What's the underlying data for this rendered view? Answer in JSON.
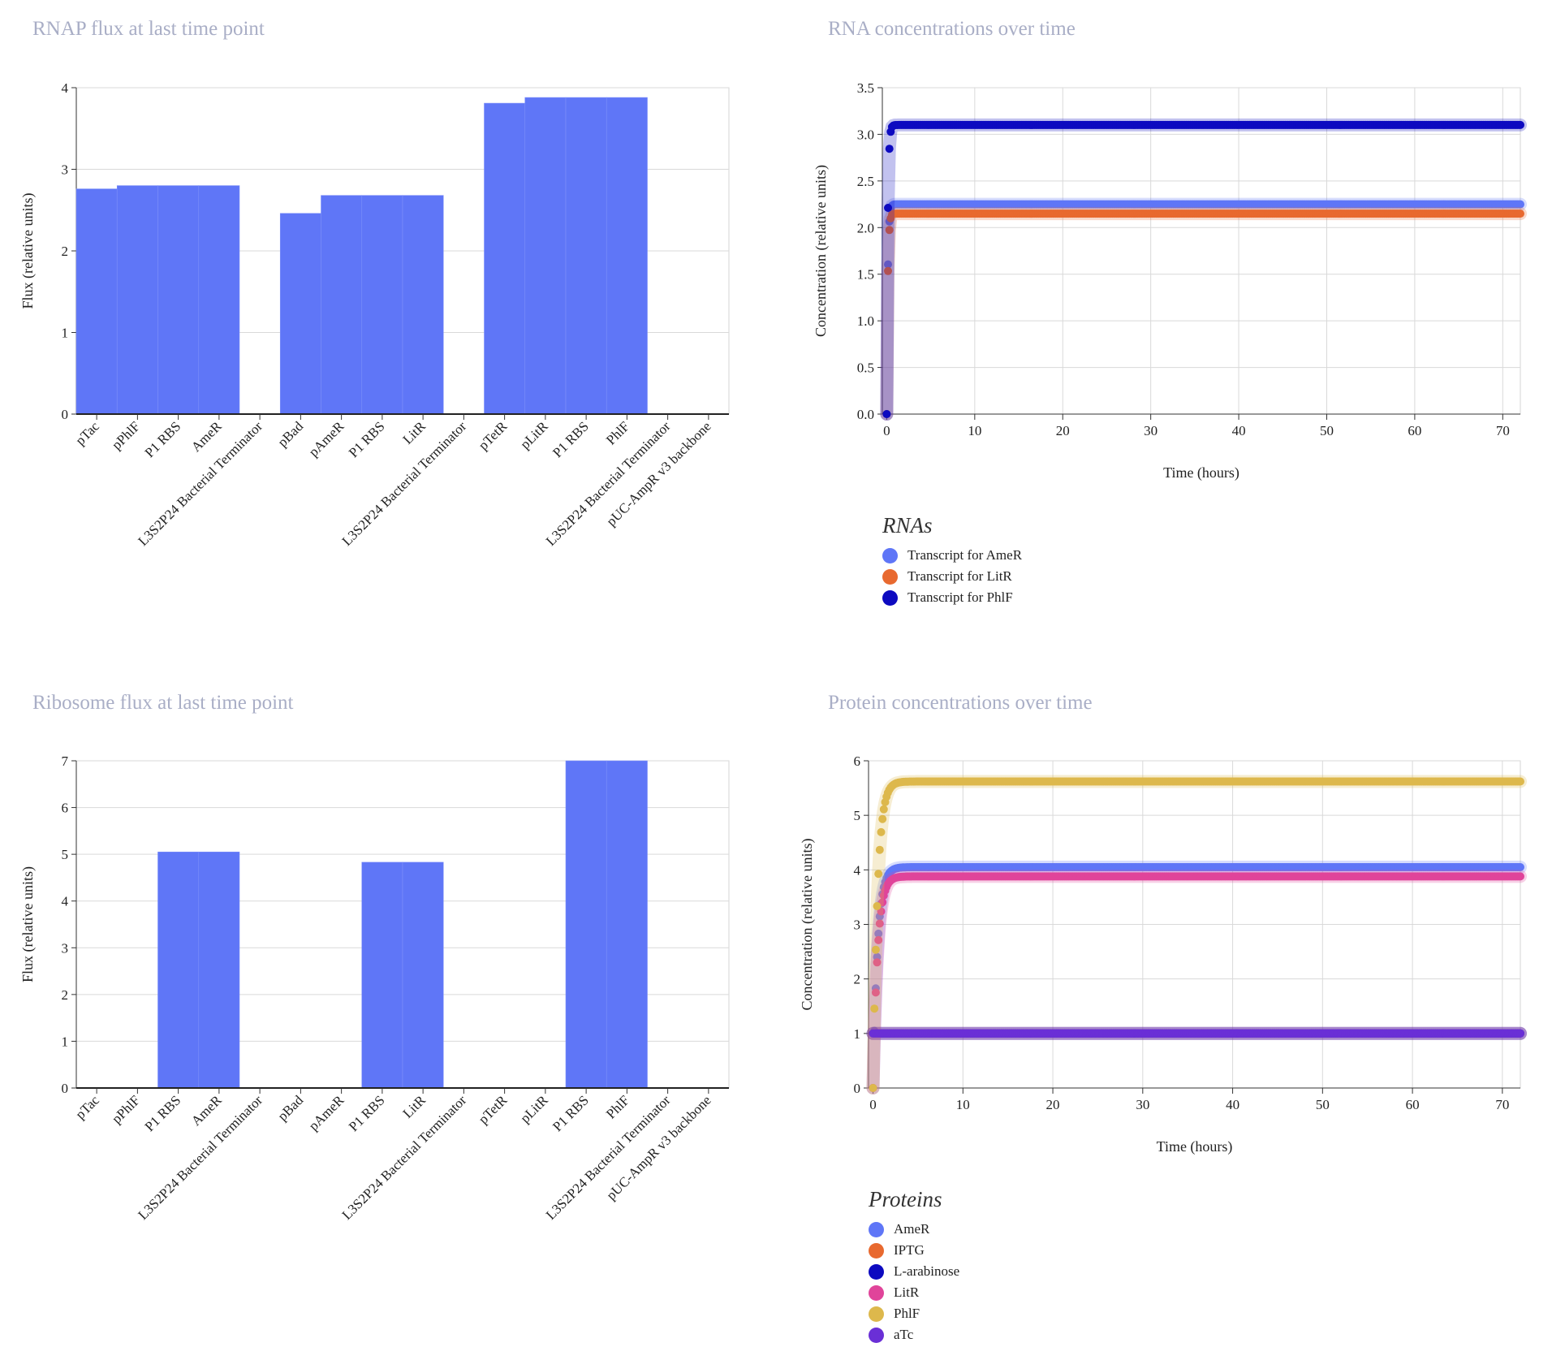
{
  "chart_data": [
    {
      "id": "rnap",
      "type": "bar",
      "title": "RNAP flux at last time point",
      "xlabel": "",
      "ylabel": "Flux (relative units)",
      "ylim": [
        0,
        4
      ],
      "yticks": [
        0,
        1,
        2,
        3,
        4
      ],
      "categories": [
        "pTac",
        "pPhlF",
        "P1 RBS",
        "AmeR",
        "L3S2P24 Bacterial Terminator",
        "pBad",
        "pAmeR",
        "P1 RBS",
        "LitR",
        "L3S2P24 Bacterial Terminator",
        "pTetR",
        "pLitR",
        "P1 RBS",
        "PhlF",
        "L3S2P24 Bacterial Terminator",
        "pUC-AmpR v3 backbone"
      ],
      "values": [
        2.76,
        2.8,
        2.8,
        2.8,
        0,
        2.46,
        2.68,
        2.68,
        2.68,
        0,
        3.81,
        3.88,
        3.88,
        3.88,
        0,
        0
      ],
      "color": "#5f76f7",
      "grid": true
    },
    {
      "id": "ribo",
      "type": "bar",
      "title": "Ribosome flux at last time point",
      "xlabel": "",
      "ylabel": "Flux (relative units)",
      "ylim": [
        0,
        7
      ],
      "yticks": [
        0,
        1,
        2,
        3,
        4,
        5,
        6,
        7
      ],
      "categories": [
        "pTac",
        "pPhlF",
        "P1 RBS",
        "AmeR",
        "L3S2P24 Bacterial Terminator",
        "pBad",
        "pAmeR",
        "P1 RBS",
        "LitR",
        "L3S2P24 Bacterial Terminator",
        "pTetR",
        "pLitR",
        "P1 RBS",
        "PhlF",
        "L3S2P24 Bacterial Terminator",
        "pUC-AmpR v3 backbone"
      ],
      "values": [
        0,
        0,
        5.05,
        5.05,
        0,
        0,
        0,
        4.83,
        4.83,
        0,
        0,
        0,
        7.0,
        7.0,
        0,
        0
      ],
      "color": "#5f76f7",
      "grid": true
    },
    {
      "id": "rna",
      "type": "scatter",
      "title": "RNA concentrations over time",
      "xlabel": "Time (hours)",
      "ylabel": "Concentration (relative units)",
      "xlim": [
        -0.5,
        72
      ],
      "ylim": [
        0,
        3.5
      ],
      "xticks": [
        0,
        10,
        20,
        30,
        40,
        50,
        60,
        70
      ],
      "yticks": [
        0.0,
        0.5,
        1.0,
        1.5,
        2.0,
        2.5,
        3.0,
        3.5
      ],
      "yformat": 1,
      "legend_title": "RNAs",
      "legend_position": "bottom-left",
      "grid": true,
      "series": [
        {
          "name": "Transcript for AmeR",
          "color": "#5f76f7",
          "steady": 2.25,
          "tau": 0.12
        },
        {
          "name": "Transcript for LitR",
          "color": "#e8692f",
          "steady": 2.15,
          "tau": 0.12
        },
        {
          "name": "Transcript for PhlF",
          "color": "#0d0ac0",
          "steady": 3.1,
          "tau": 0.12
        }
      ]
    },
    {
      "id": "protein",
      "type": "scatter",
      "title": "Protein concentrations over time",
      "xlabel": "Time (hours)",
      "ylabel": "Concentration (relative units)",
      "xlim": [
        -0.5,
        72
      ],
      "ylim": [
        0,
        6
      ],
      "xticks": [
        0,
        10,
        20,
        30,
        40,
        50,
        60,
        70
      ],
      "yticks": [
        0,
        1,
        2,
        3,
        4,
        5,
        6
      ],
      "yformat": 0,
      "legend_title": "Proteins",
      "legend_position": "bottom-left",
      "grid": true,
      "series": [
        {
          "name": "AmeR",
          "color": "#5f76f7",
          "steady": 4.05,
          "tau": 0.5
        },
        {
          "name": "IPTG",
          "color": "#e8692f",
          "steady": 1.0,
          "tau": 0
        },
        {
          "name": "L-arabinose",
          "color": "#0d0ac0",
          "steady": 1.0,
          "tau": 0
        },
        {
          "name": "LitR",
          "color": "#e0449a",
          "steady": 3.88,
          "tau": 0.5
        },
        {
          "name": "PhlF",
          "color": "#ddb84c",
          "steady": 5.62,
          "tau": 0.5
        },
        {
          "name": "aTc",
          "color": "#6a2fd6",
          "steady": 1.0,
          "tau": 0
        }
      ]
    }
  ]
}
